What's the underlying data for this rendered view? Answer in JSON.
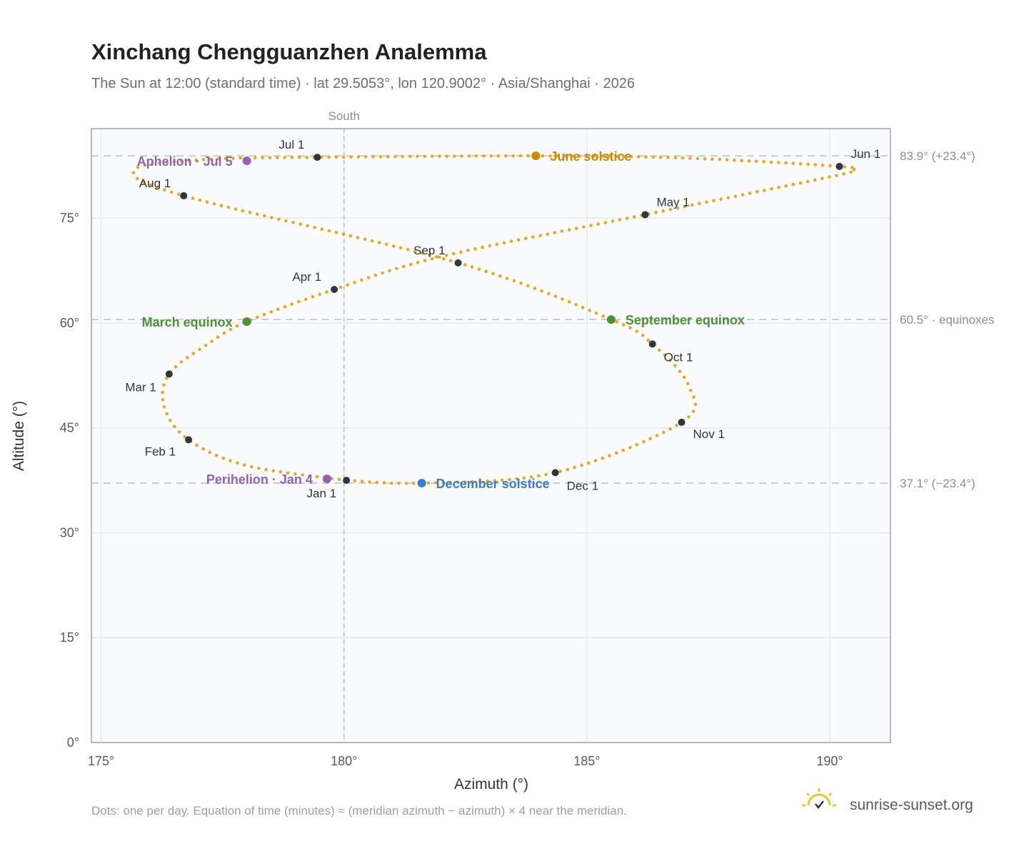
{
  "header": {
    "title": "Xinchang Chengguanzhen Analemma",
    "subtitle": "The Sun at 12:00 (standard time) · lat 29.5053°, lon 120.9002° · Asia/Shanghai · 2026"
  },
  "footer": {
    "note": "Dots: one per day. Equation of time (minutes) ≈ (meridian azimuth − azimuth) × 4 near the meridian.",
    "brand": "sunrise-sunset.org",
    "brand_icon": "sun-logo-icon"
  },
  "colors": {
    "curve": "#f0a424",
    "month_dot": "#2f3640",
    "aphelion": "#8e63b8",
    "perihelion": "#8e63b8",
    "equinox": "#4f8f35",
    "june_solstice": "#cc8a06",
    "december_solstice": "#3d7cc9",
    "plot_bg": "#f9fbfd",
    "grid": "#e4e9ef",
    "frame": "#9aa4b0",
    "reference": "#b6c0cc"
  },
  "chart_data": {
    "type": "scatter",
    "title": "Xinchang Chengguanzhen Analemma",
    "subtitle": "The Sun at 12:00 (standard time) · lat 29.5053°, lon 120.9002° · Asia/Shanghai · 2026",
    "xlabel": "Azimuth (°)",
    "ylabel": "Altitude (°)",
    "xlim": [
      174.8,
      191.25
    ],
    "ylim": [
      0,
      87.8
    ],
    "x_ticks": [
      {
        "value": 175,
        "label": "175°"
      },
      {
        "value": 180,
        "label": "180°"
      },
      {
        "value": 185,
        "label": "185°"
      },
      {
        "value": 190,
        "label": "190°"
      }
    ],
    "y_ticks": [
      {
        "value": 0,
        "label": "0°"
      },
      {
        "value": 15,
        "label": "15°"
      },
      {
        "value": 30,
        "label": "30°"
      },
      {
        "value": 45,
        "label": "45°"
      },
      {
        "value": 60,
        "label": "60°"
      },
      {
        "value": 75,
        "label": "75°"
      }
    ],
    "grid": true,
    "meridian": {
      "azimuth": 180,
      "label": "South"
    },
    "reference_lines": [
      {
        "altitude": 83.9,
        "label": "83.9° (+23.4°)"
      },
      {
        "altitude": 60.5,
        "label": "60.5° · equinoxes"
      },
      {
        "altitude": 37.1,
        "label": "37.1° (−23.4°)"
      }
    ],
    "months": [
      {
        "label": "Jan 1",
        "azimuth": 180.05,
        "altitude": 37.5
      },
      {
        "label": "Feb 1",
        "azimuth": 176.8,
        "altitude": 43.3
      },
      {
        "label": "Mar 1",
        "azimuth": 176.4,
        "altitude": 52.7
      },
      {
        "label": "Apr 1",
        "azimuth": 179.8,
        "altitude": 64.8
      },
      {
        "label": "May 1",
        "azimuth": 186.2,
        "altitude": 75.5
      },
      {
        "label": "Jun 1",
        "azimuth": 190.2,
        "altitude": 82.4
      },
      {
        "label": "Jul 1",
        "azimuth": 179.45,
        "altitude": 83.7
      },
      {
        "label": "Aug 1",
        "azimuth": 176.7,
        "altitude": 78.2
      },
      {
        "label": "Sep 1",
        "azimuth": 182.35,
        "altitude": 68.6
      },
      {
        "label": "Oct 1",
        "azimuth": 186.35,
        "altitude": 57.0
      },
      {
        "label": "Nov 1",
        "azimuth": 186.95,
        "altitude": 45.8
      },
      {
        "label": "Dec 1",
        "azimuth": 184.35,
        "altitude": 38.6
      }
    ],
    "events": [
      {
        "label": "Aphelion · Jul 5",
        "azimuth": 178.0,
        "altitude": 83.2,
        "color": "#8e63b8"
      },
      {
        "label": "June solstice",
        "azimuth": 183.95,
        "altitude": 83.9,
        "color": "#cc8a06"
      },
      {
        "label": "March equinox",
        "azimuth": 178.0,
        "altitude": 60.2,
        "color": "#4f8f35"
      },
      {
        "label": "September equinox",
        "azimuth": 185.5,
        "altitude": 60.5,
        "color": "#4f8f35"
      },
      {
        "label": "Perihelion · Jan 4",
        "azimuth": 179.65,
        "altitude": 37.7,
        "color": "#8e63b8"
      },
      {
        "label": "December solstice",
        "azimuth": 181.6,
        "altitude": 37.1,
        "color": "#3d7cc9"
      }
    ],
    "curve_keypoints": [
      [
        180.05,
        37.5
      ],
      [
        178.0,
        39.6
      ],
      [
        176.8,
        43.3
      ],
      [
        176.3,
        48.0
      ],
      [
        176.4,
        52.7
      ],
      [
        177.2,
        57.0
      ],
      [
        178.0,
        60.2
      ],
      [
        179.8,
        64.8
      ],
      [
        182.0,
        69.5
      ],
      [
        186.2,
        75.5
      ],
      [
        190.0,
        80.9
      ],
      [
        190.45,
        81.8
      ],
      [
        190.2,
        82.4
      ],
      [
        187.0,
        83.6
      ],
      [
        183.95,
        83.9
      ],
      [
        179.45,
        83.7
      ],
      [
        177.2,
        83.4
      ],
      [
        175.7,
        82.0
      ],
      [
        176.7,
        78.2
      ],
      [
        182.35,
        68.6
      ],
      [
        185.5,
        60.5
      ],
      [
        186.35,
        57.0
      ],
      [
        187.1,
        51.0
      ],
      [
        186.95,
        45.8
      ],
      [
        184.35,
        38.6
      ],
      [
        181.6,
        37.1
      ],
      [
        180.05,
        37.5
      ]
    ]
  }
}
